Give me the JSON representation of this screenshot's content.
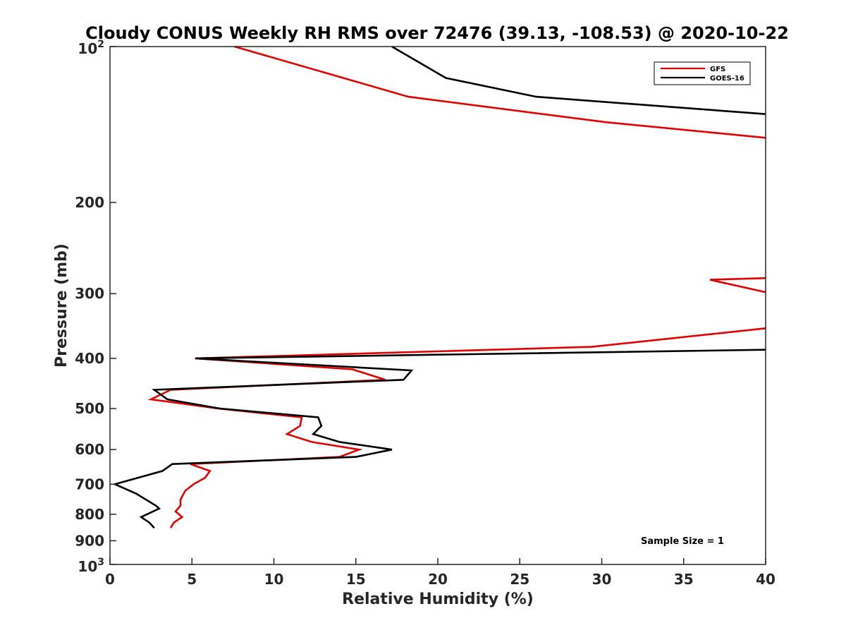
{
  "chart_data": {
    "type": "line",
    "title": "Cloudy CONUS Weekly RH RMS over 72476 (39.13, -108.53) @ 2020-10-22",
    "xlabel": "Relative Humidity (%)",
    "ylabel": "Pressure (mb)",
    "xlim": [
      0,
      40
    ],
    "ylim": [
      100,
      1000
    ],
    "y_scale": "log",
    "y_reversed": true,
    "grid": false,
    "legend_position": "top-right",
    "x_ticks": [
      0,
      5,
      10,
      15,
      20,
      25,
      30,
      35,
      40
    ],
    "y_ticks": [
      {
        "value": 100,
        "base": "10",
        "exp": "2"
      },
      {
        "value": 200,
        "label": "200"
      },
      {
        "value": 300,
        "label": "300"
      },
      {
        "value": 400,
        "label": "400"
      },
      {
        "value": 500,
        "label": "500"
      },
      {
        "value": 600,
        "label": "600"
      },
      {
        "value": 700,
        "label": "700"
      },
      {
        "value": 800,
        "label": "800"
      },
      {
        "value": 900,
        "label": "900"
      },
      {
        "value": 1000,
        "base": "10",
        "exp": "3"
      }
    ],
    "annotation": "Sample Size = 1",
    "series": [
      {
        "name": "GFS",
        "color": "#e00000",
        "points": [
          [
            7.6,
            100
          ],
          [
            18.2,
            125
          ],
          [
            30.3,
            140
          ],
          [
            40,
            150
          ],
          null,
          [
            40,
            280
          ],
          [
            36.6,
            282
          ],
          [
            40,
            298
          ],
          null,
          [
            40,
            350
          ],
          [
            29.4,
            380
          ],
          [
            5.2,
            400
          ],
          [
            14.8,
            420
          ],
          [
            16.8,
            440
          ],
          [
            3.7,
            460
          ],
          [
            2.5,
            480
          ],
          [
            6.6,
            500
          ],
          [
            11.7,
            520
          ],
          [
            11.6,
            540
          ],
          [
            10.8,
            560
          ],
          [
            12.3,
            580
          ],
          [
            15.2,
            600
          ],
          [
            14.0,
            620
          ],
          [
            4.9,
            640
          ],
          [
            6.1,
            660
          ],
          [
            5.8,
            680
          ],
          [
            5.1,
            700
          ],
          [
            4.6,
            720
          ],
          [
            4.3,
            750
          ],
          [
            4.3,
            770
          ],
          [
            4.0,
            790
          ],
          [
            4.4,
            810
          ],
          [
            3.9,
            830
          ],
          [
            3.7,
            850
          ]
        ]
      },
      {
        "name": "GOES-16",
        "color": "#000000",
        "points": [
          [
            17.2,
            100
          ],
          [
            20.5,
            115
          ],
          [
            26.0,
            125
          ],
          [
            40,
            135
          ],
          null,
          [
            40,
            385
          ],
          [
            5.2,
            400
          ],
          [
            18.4,
            422
          ],
          [
            17.9,
            440
          ],
          [
            2.7,
            460
          ],
          [
            3.5,
            480
          ],
          [
            6.7,
            500
          ],
          [
            12.7,
            520
          ],
          [
            12.9,
            540
          ],
          [
            12.4,
            560
          ],
          [
            14.0,
            580
          ],
          [
            17.2,
            600
          ],
          [
            15.0,
            620
          ],
          [
            3.8,
            640
          ],
          [
            3.2,
            660
          ],
          [
            0.3,
            700
          ],
          [
            1.6,
            730
          ],
          [
            2.8,
            770
          ],
          [
            3.0,
            780
          ],
          [
            1.9,
            810
          ],
          [
            2.4,
            830
          ],
          [
            2.7,
            850
          ]
        ]
      }
    ]
  }
}
